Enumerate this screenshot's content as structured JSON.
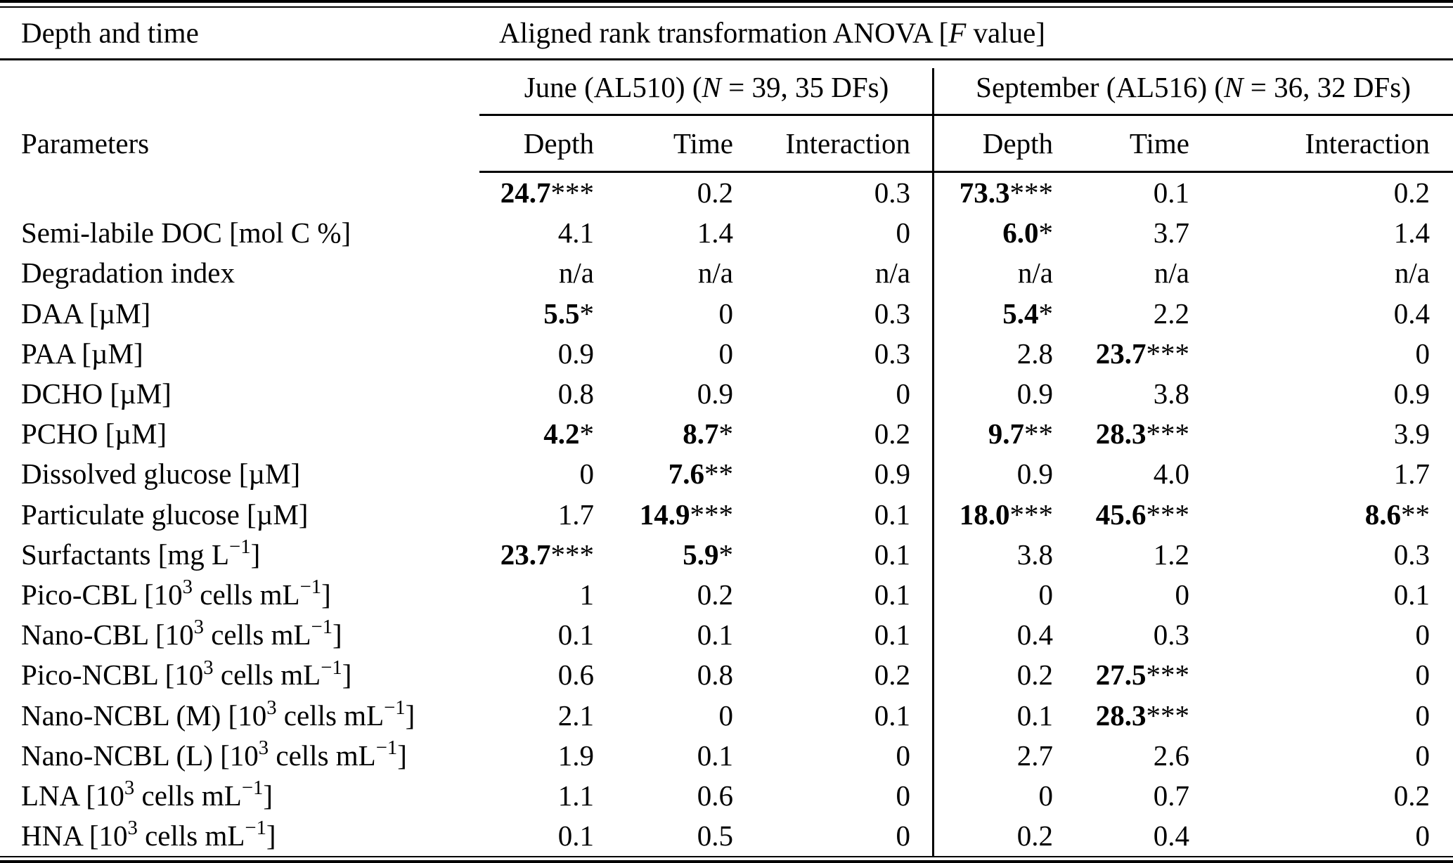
{
  "table": {
    "corner_label": "Depth and time",
    "params_label": "Parameters",
    "anova_header": {
      "prefix": "Aligned rank transformation ANOVA [",
      "variable": "F",
      "suffix": " value]"
    },
    "groups": [
      {
        "name": "June",
        "prefix": "June (AL510) (",
        "variable": "N",
        "suffix": " = 39, 35 DFs)",
        "columns": [
          "Depth",
          "Time",
          "Interaction"
        ]
      },
      {
        "name": "September",
        "prefix": "September (AL516) (",
        "variable": "N",
        "suffix": " = 36, 32 DFs)",
        "columns": [
          "Depth",
          "Time",
          "Interaction"
        ]
      }
    ],
    "rows": [
      {
        "label": "",
        "values": [
          {
            "v": "24.7",
            "stars": "***",
            "bold": true
          },
          "0.2",
          "0.3",
          {
            "v": "73.3",
            "stars": "***",
            "bold": true
          },
          "0.1",
          "0.2"
        ]
      },
      {
        "label": "Semi-labile DOC [mol C %]",
        "values": [
          "4.1",
          "1.4",
          "0",
          {
            "v": "6.0",
            "stars": "*",
            "bold": true
          },
          "3.7",
          "1.4"
        ]
      },
      {
        "label": "Degradation index",
        "values": [
          "n/a",
          "n/a",
          "n/a",
          "n/a",
          "n/a",
          "n/a"
        ]
      },
      {
        "label": "DAA [µM]",
        "values": [
          {
            "v": "5.5",
            "stars": "*",
            "bold": true
          },
          "0",
          "0.3",
          {
            "v": "5.4",
            "stars": "*",
            "bold": true
          },
          "2.2",
          "0.4"
        ]
      },
      {
        "label": "PAA [µM]",
        "values": [
          "0.9",
          "0",
          "0.3",
          "2.8",
          {
            "v": "23.7",
            "stars": "***",
            "bold": true
          },
          "0"
        ]
      },
      {
        "label": "DCHO [µM]",
        "values": [
          "0.8",
          "0.9",
          "0",
          "0.9",
          "3.8",
          "0.9"
        ]
      },
      {
        "label": "PCHO [µM]",
        "values": [
          {
            "v": "4.2",
            "stars": "*",
            "bold": true
          },
          {
            "v": "8.7",
            "stars": "*",
            "bold": true
          },
          "0.2",
          {
            "v": "9.7",
            "stars": "**",
            "bold": true
          },
          {
            "v": "28.3",
            "stars": "***",
            "bold": true
          },
          "3.9"
        ]
      },
      {
        "label": "Dissolved glucose [µM]",
        "values": [
          "0",
          {
            "v": "7.6",
            "stars": "**",
            "bold": true
          },
          "0.9",
          "0.9",
          "4.0",
          "1.7"
        ]
      },
      {
        "label": "Particulate glucose [µM]",
        "values": [
          "1.7",
          {
            "v": "14.9",
            "stars": "***",
            "bold": true
          },
          "0.1",
          {
            "v": "18.0",
            "stars": "***",
            "bold": true
          },
          {
            "v": "45.6",
            "stars": "***",
            "bold": true
          },
          {
            "v": "8.6",
            "stars": "**",
            "bold": true
          }
        ]
      },
      {
        "label": "Surfactants [mg L^{−1}]",
        "values": [
          {
            "v": "23.7",
            "stars": "***",
            "bold": true
          },
          {
            "v": "5.9",
            "stars": "*",
            "bold": true
          },
          "0.1",
          "3.8",
          "1.2",
          "0.3"
        ]
      },
      {
        "label": "Pico-CBL [10^{3} cells mL^{−1}]",
        "values": [
          "1",
          "0.2",
          "0.1",
          "0",
          "0",
          "0.1"
        ]
      },
      {
        "label": "Nano-CBL [10^{3} cells mL^{−1}]",
        "values": [
          "0.1",
          "0.1",
          "0.1",
          "0.4",
          "0.3",
          "0"
        ]
      },
      {
        "label": "Pico-NCBL [10^{3} cells mL^{−1}]",
        "values": [
          "0.6",
          "0.8",
          "0.2",
          "0.2",
          {
            "v": "27.5",
            "stars": "***",
            "bold": true
          },
          "0"
        ]
      },
      {
        "label": "Nano-NCBL (M) [10^{3} cells mL^{−1}]",
        "values": [
          "2.1",
          "0",
          "0.1",
          "0.1",
          {
            "v": "28.3",
            "stars": "***",
            "bold": true
          },
          "0"
        ]
      },
      {
        "label": "Nano-NCBL (L) [10^{3} cells mL^{−1}]",
        "values": [
          "1.9",
          "0.1",
          "0",
          "2.7",
          "2.6",
          "0"
        ]
      },
      {
        "label": "LNA [10^{3} cells mL^{−1}]",
        "values": [
          "1.1",
          "0.6",
          "0",
          "0",
          "0.7",
          "0.2"
        ]
      },
      {
        "label": "HNA [10^{3} cells mL^{−1}]",
        "values": [
          "0.1",
          "0.5",
          "0",
          "0.2",
          "0.4",
          "0"
        ]
      }
    ]
  }
}
